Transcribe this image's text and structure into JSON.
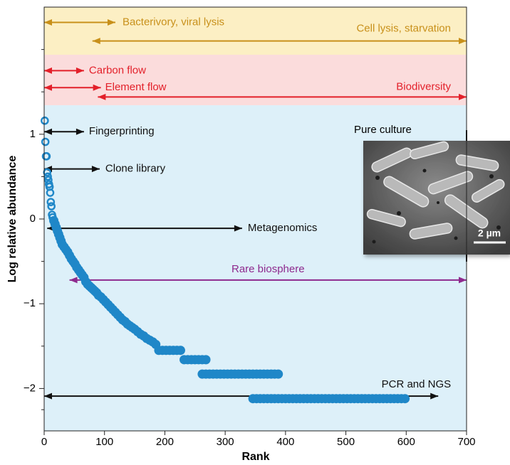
{
  "chart_data": {
    "type": "scatter",
    "xlabel": "Rank",
    "ylabel": "Log relative abundance",
    "xlim": [
      0,
      700
    ],
    "ylim": [
      -2.5,
      2.5
    ],
    "xticks": [
      0,
      100,
      200,
      300,
      400,
      500,
      600,
      700
    ],
    "yticks": [
      {
        "value": -2,
        "label": "−2"
      },
      {
        "value": -1,
        "label": "−1"
      },
      0,
      1
    ],
    "yminorticks": [
      -2.25,
      -1.5,
      -0.5,
      0.5,
      1.5,
      2
    ],
    "series": [
      {
        "color": "#1f87c8",
        "marker": "open",
        "x": [
          1,
          2,
          3,
          4,
          5,
          6,
          7,
          8,
          9,
          10,
          11,
          12,
          13,
          14
        ],
        "values": [
          1.16,
          0.91,
          0.74,
          0.74,
          0.55,
          0.5,
          0.46,
          0.41,
          0.38,
          0.31,
          0.2,
          0.15,
          0.05,
          0.02
        ]
      },
      {
        "color": "#1f87c8",
        "marker": "filled",
        "x": [
          16,
          18,
          20,
          22,
          24,
          26,
          28,
          30,
          33,
          36,
          39,
          42,
          45,
          48,
          51,
          54,
          57,
          60,
          63,
          66,
          69,
          72,
          75,
          78,
          81,
          84,
          87,
          90,
          94,
          98,
          102,
          106,
          110,
          114,
          118,
          122,
          126,
          130,
          134,
          138,
          142,
          146,
          150,
          155,
          160,
          165,
          170,
          175,
          180,
          185,
          190,
          196,
          202,
          208,
          214,
          220,
          226,
          232,
          238,
          244,
          250,
          256,
          262,
          268,
          262,
          268,
          274,
          280,
          286,
          292,
          298,
          304,
          310,
          316,
          322,
          328,
          334,
          340,
          346,
          352,
          358,
          364,
          370,
          376,
          382,
          388,
          346,
          352,
          358,
          364,
          370,
          376,
          382,
          388,
          394,
          400,
          406,
          412,
          418,
          424,
          430,
          436,
          442,
          448,
          454,
          460,
          466,
          472,
          478,
          484,
          490,
          496,
          502,
          508,
          514,
          520,
          526,
          532,
          538,
          544,
          550,
          556,
          562,
          568,
          574,
          580,
          586,
          592,
          598
        ],
        "values": [
          -0.02,
          -0.06,
          -0.1,
          -0.14,
          -0.18,
          -0.22,
          -0.26,
          -0.3,
          -0.33,
          -0.36,
          -0.39,
          -0.43,
          -0.47,
          -0.5,
          -0.53,
          -0.57,
          -0.6,
          -0.63,
          -0.66,
          -0.69,
          -0.74,
          -0.77,
          -0.79,
          -0.81,
          -0.83,
          -0.85,
          -0.87,
          -0.9,
          -0.92,
          -0.95,
          -0.98,
          -1.01,
          -1.04,
          -1.07,
          -1.1,
          -1.13,
          -1.16,
          -1.19,
          -1.21,
          -1.24,
          -1.26,
          -1.28,
          -1.3,
          -1.33,
          -1.36,
          -1.38,
          -1.41,
          -1.43,
          -1.45,
          -1.48,
          -1.55,
          -1.55,
          -1.55,
          -1.55,
          -1.55,
          -1.55,
          -1.55,
          -1.66,
          -1.66,
          -1.66,
          -1.66,
          -1.66,
          -1.66,
          -1.66,
          -1.83,
          -1.83,
          -1.83,
          -1.83,
          -1.83,
          -1.83,
          -1.83,
          -1.83,
          -1.83,
          -1.83,
          -1.83,
          -1.83,
          -1.83,
          -1.83,
          -1.83,
          -1.83,
          -1.83,
          -1.83,
          -1.83,
          -1.83,
          -1.83,
          -1.83,
          -2.12,
          -2.12,
          -2.12,
          -2.12,
          -2.12,
          -2.12,
          -2.12,
          -2.12,
          -2.12,
          -2.12,
          -2.12,
          -2.12,
          -2.12,
          -2.12,
          -2.12,
          -2.12,
          -2.12,
          -2.12,
          -2.12,
          -2.12,
          -2.12,
          -2.12,
          -2.12,
          -2.12,
          -2.12,
          -2.12,
          -2.12,
          -2.12,
          -2.12,
          -2.12,
          -2.12,
          -2.12,
          -2.12,
          -2.12,
          -2.12,
          -2.12,
          -2.12,
          -2.12,
          -2.12,
          -2.12,
          -2.12,
          -2.12,
          -2.12
        ]
      }
    ],
    "annotations": [
      {
        "text": "Bacterivory, viral lysis",
        "x0": 0,
        "x1": 118,
        "y": 2.32,
        "color": "#c8901a"
      },
      {
        "text": "Cell lysis, starvation",
        "x0": 80,
        "x1": 700,
        "y": 2.1,
        "color": "#c8901a"
      },
      {
        "text": "Carbon flow",
        "x0": 0,
        "x1": 66,
        "y": 1.75,
        "color": "#e3202a"
      },
      {
        "text": "Element flow",
        "x0": 0,
        "x1": 94,
        "y": 1.55,
        "color": "#e3202a"
      },
      {
        "text": "Biodiversity",
        "x0": 89,
        "x1": 700,
        "y": 1.44,
        "color": "#e3202a"
      },
      {
        "text": "Fingerprinting",
        "x0": 0,
        "x1": 66,
        "y": 1.03,
        "color": "#111111"
      },
      {
        "text": "Clone library",
        "x0": 0,
        "x1": 92,
        "y": 0.59,
        "color": "#111111"
      },
      {
        "text": "Metagenomics",
        "x0": 5,
        "x1": 328,
        "y": -0.11,
        "color": "#111111"
      },
      {
        "text": "Rare biosphere",
        "x0": 42,
        "x1": 700,
        "y": -0.72,
        "color": "#8e2a8e"
      },
      {
        "text": "PCR and NGS",
        "x0": 0,
        "x1": 653,
        "y": -2.09,
        "color": "#111111"
      }
    ],
    "inset_title": "Pure culture",
    "inset_scale_label": "2 µm"
  }
}
